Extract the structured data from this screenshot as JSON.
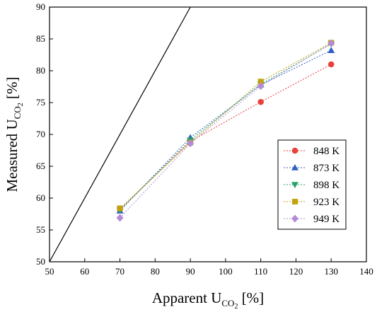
{
  "chart_data": {
    "type": "scatter",
    "xlabel": {
      "main": "Apparent U",
      "sub": "CO",
      "sub2": "2",
      "unit": " [%]"
    },
    "ylabel": {
      "main": "Measured U",
      "sub": "CO",
      "sub2": "2",
      "unit": " [%]"
    },
    "xlim": [
      50,
      140
    ],
    "ylim": [
      50,
      90
    ],
    "xticks": [
      50,
      60,
      70,
      80,
      90,
      100,
      110,
      120,
      130,
      140
    ],
    "yticks": [
      50,
      55,
      60,
      65,
      70,
      75,
      80,
      85,
      90
    ],
    "grid": false,
    "legend": "right",
    "reference_line": {
      "x": [
        50,
        90
      ],
      "y": [
        50,
        90
      ],
      "color": "#000000"
    },
    "x": [
      70,
      90,
      110,
      130
    ],
    "series": [
      {
        "name": "848 K",
        "values": [
          58.2,
          68.9,
          75.1,
          81.0
        ],
        "color": "#e8403a",
        "marker": "circle"
      },
      {
        "name": "873 K",
        "values": [
          58.0,
          69.5,
          77.8,
          83.2
        ],
        "color": "#2f5fbf",
        "marker": "triangle-up"
      },
      {
        "name": "898 K",
        "values": [
          58.1,
          69.1,
          77.9,
          84.2
        ],
        "color": "#27a36a",
        "marker": "triangle-down"
      },
      {
        "name": "923 K",
        "values": [
          58.4,
          68.7,
          78.3,
          84.4
        ],
        "color": "#c3a20e",
        "marker": "square"
      },
      {
        "name": "949 K",
        "values": [
          56.9,
          68.6,
          77.6,
          84.3
        ],
        "color": "#b58ad6",
        "marker": "diamond"
      }
    ]
  }
}
